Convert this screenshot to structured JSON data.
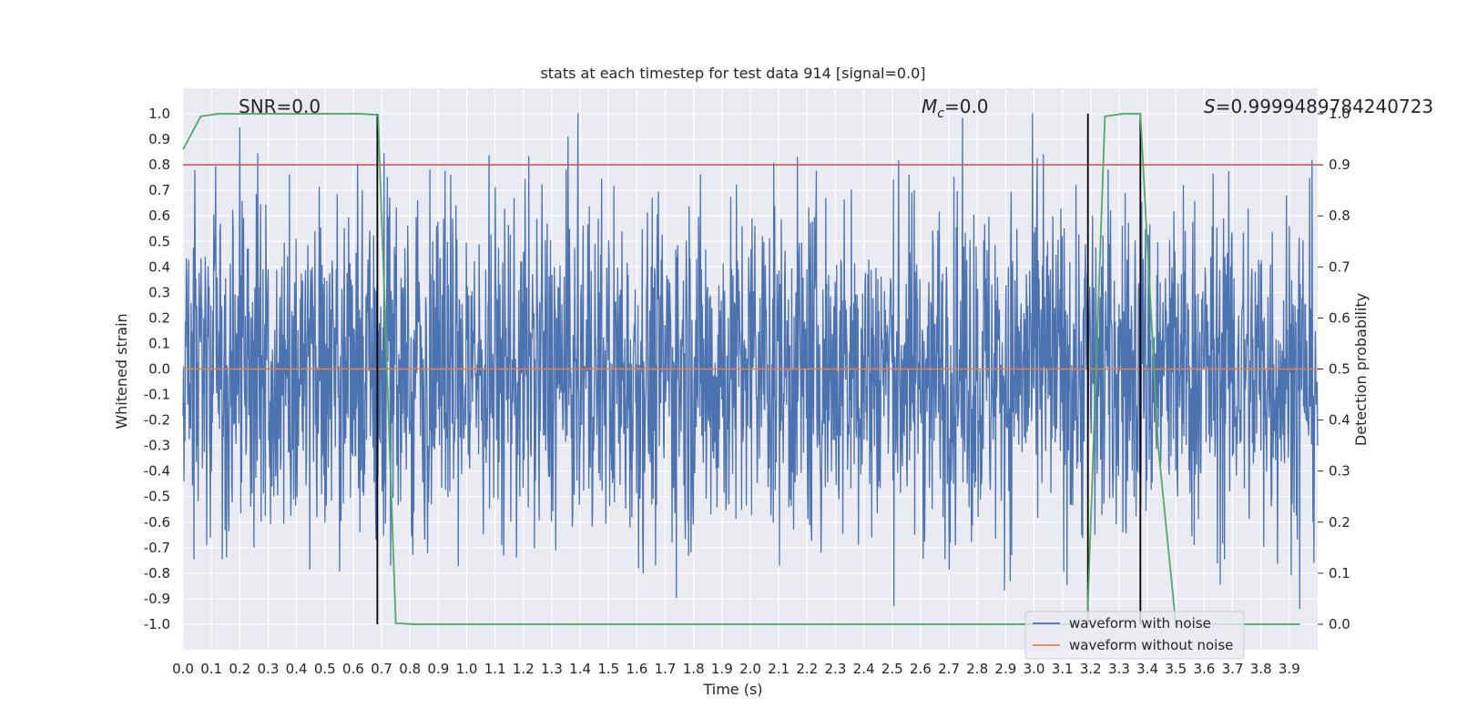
{
  "chart_data": {
    "type": "line",
    "title": "stats at each timestep for test data 914 [signal=0.0]",
    "xlabel": "Time (s)",
    "ylabel_left": "Whitened strain",
    "ylabel_right": "Detection probability",
    "xlim": [
      0.0,
      4.0
    ],
    "ylim_left": [
      -1.1,
      1.1
    ],
    "ylim_right": [
      -0.05,
      1.05
    ],
    "x_ticks": [
      "0.0",
      "0.1",
      "0.2",
      "0.3",
      "0.4",
      "0.5",
      "0.6",
      "0.7",
      "0.8",
      "0.9",
      "1.0",
      "1.1",
      "1.2",
      "1.3",
      "1.4",
      "1.5",
      "1.6",
      "1.7",
      "1.8",
      "1.9",
      "2.0",
      "2.1",
      "2.2",
      "2.3",
      "2.4",
      "2.5",
      "2.6",
      "2.7",
      "2.8",
      "2.9",
      "3.0",
      "3.1",
      "3.2",
      "3.3",
      "3.4",
      "3.5",
      "3.6",
      "3.7",
      "3.8",
      "3.9"
    ],
    "y_ticks_left": [
      "1.0",
      "0.9",
      "0.8",
      "0.7",
      "0.6",
      "0.5",
      "0.4",
      "0.3",
      "0.2",
      "0.1",
      "0.0",
      "-0.1",
      "-0.2",
      "-0.3",
      "-0.4",
      "-0.5",
      "-0.6",
      "-0.7",
      "-0.8",
      "-0.9",
      "-1.0"
    ],
    "y_ticks_right": [
      "1.0",
      "0.9",
      "0.8",
      "0.7",
      "0.6",
      "0.5",
      "0.4",
      "0.3",
      "0.2",
      "0.1",
      "0.0"
    ],
    "annotations": {
      "snr": "SNR=0.0",
      "mc_symbol": "M",
      "mc_sub": "c",
      "mc_value": "=0.0",
      "s_symbol": "S",
      "s_value": "=0.9999489784240723"
    },
    "series": [
      {
        "name": "waveform with noise",
        "color": "#4c72b0",
        "axis": "left",
        "note": "dense white-noise strain, peak amplitude about 1.0"
      },
      {
        "name": "waveform without noise",
        "color": "#dd8452",
        "axis": "left",
        "values_constant": 0.0
      },
      {
        "name": "detection probability",
        "color": "#55a868",
        "axis": "right",
        "x": [
          0.0,
          0.0625,
          0.125,
          0.1875,
          0.25,
          0.3125,
          0.375,
          0.4375,
          0.5,
          0.5625,
          0.625,
          0.6875,
          0.75,
          0.8125,
          0.875,
          3.1875,
          3.25,
          3.3125,
          3.375,
          3.4375,
          3.5,
          3.5625,
          3.625,
          3.6875,
          3.75,
          3.8125,
          3.875,
          3.9375
        ],
        "values": [
          0.93,
          0.995,
          1.0,
          1.0,
          1.0,
          1.0,
          1.0,
          1.0,
          1.0,
          1.0,
          1.0,
          0.998,
          0.002,
          0.0,
          0.0,
          0.0,
          0.995,
          1.0,
          1.0,
          0.35,
          0.0,
          0.0,
          0.0,
          0.0,
          0.0,
          0.0,
          0.0,
          0.0
        ]
      }
    ],
    "threshold": {
      "value": 0.9,
      "axis": "right",
      "color": "#c44e52"
    },
    "detection_markers_x": [
      0.685,
      3.19,
      3.375
    ],
    "detection_markers_y": [
      -1.0,
      1.0
    ],
    "legend": {
      "position": "lower-right",
      "entries": [
        "waveform with noise",
        "waveform without noise"
      ]
    },
    "grid": true
  },
  "colors": {
    "axes_bg": "#eaeaf2",
    "grid": "#ffffff",
    "noise": "#4c72b0",
    "clean": "#dd8452",
    "prob": "#55a868",
    "threshold": "#c44e52",
    "marker": "#000000"
  }
}
